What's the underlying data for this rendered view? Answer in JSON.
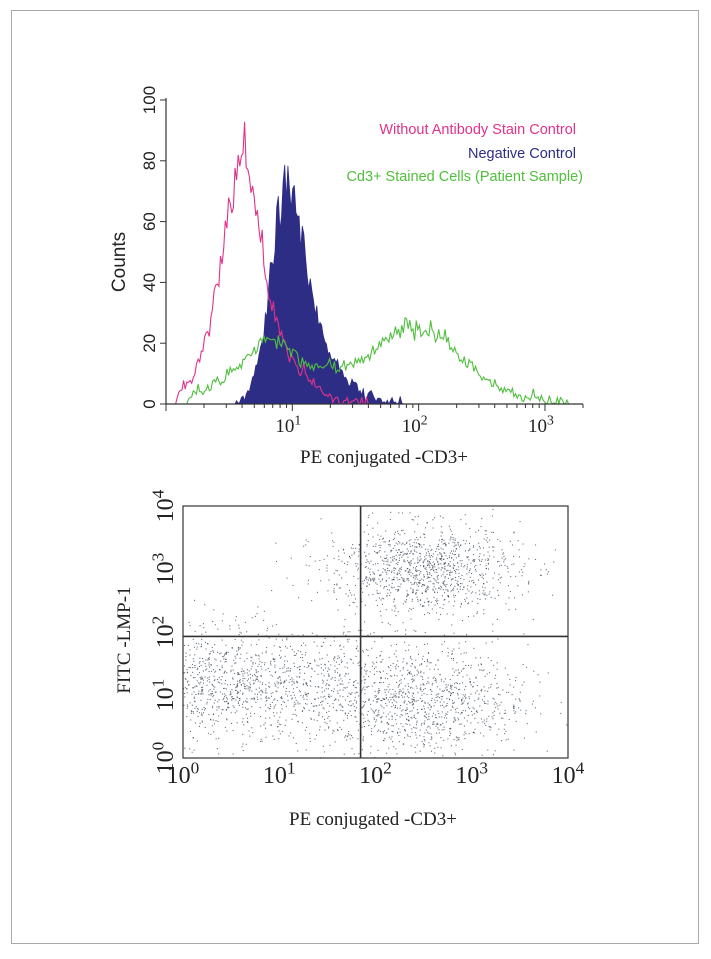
{
  "chart_data": [
    {
      "type": "area",
      "title": "",
      "xlabel": "PE conjugated -CD3+",
      "ylabel": "Counts",
      "x_scale": "log",
      "xlim": [
        1,
        2000
      ],
      "ylim": [
        0,
        100
      ],
      "x_ticks": [
        {
          "value": 10,
          "base": "10",
          "exp": "1"
        },
        {
          "value": 100,
          "base": "10",
          "exp": "2"
        },
        {
          "value": 1000,
          "base": "10",
          "exp": "3"
        }
      ],
      "y_ticks": [
        "0",
        "20",
        "40",
        "60",
        "80",
        "100"
      ],
      "y_tick_values": [
        0,
        20,
        40,
        60,
        80,
        100
      ],
      "legend_position": "top-right",
      "series": [
        {
          "name": "Without Antibody Stain  Control",
          "color": "#e0338a",
          "style": "outline",
          "points": [
            [
              1.2,
              2
            ],
            [
              1.6,
              8
            ],
            [
              2.2,
              25
            ],
            [
              2.8,
              50
            ],
            [
              3.4,
              72
            ],
            [
              3.9,
              88
            ],
            [
              4.3,
              84
            ],
            [
              5.0,
              66
            ],
            [
              6.2,
              42
            ],
            [
              8,
              24
            ],
            [
              11,
              12
            ],
            [
              16,
              5
            ],
            [
              25,
              1
            ],
            [
              40,
              0
            ]
          ]
        },
        {
          "name": "Negative Control",
          "color": "#2e2d86",
          "style": "filled",
          "points": [
            [
              3.5,
              0
            ],
            [
              4.5,
              4
            ],
            [
              5.5,
              15
            ],
            [
              6.5,
              35
            ],
            [
              7.5,
              60
            ],
            [
              8.5,
              73
            ],
            [
              9.5,
              75
            ],
            [
              11,
              64
            ],
            [
              13,
              46
            ],
            [
              16,
              28
            ],
            [
              20,
              16
            ],
            [
              27,
              8
            ],
            [
              38,
              3
            ],
            [
              55,
              1
            ],
            [
              80,
              0
            ]
          ]
        },
        {
          "name": "Cd3+ Stained Cells (Patient Sample)",
          "color": "#4fbf3c",
          "style": "outline",
          "points": [
            [
              1.5,
              2
            ],
            [
              2.5,
              7
            ],
            [
              4,
              13
            ],
            [
              5.5,
              20
            ],
            [
              7,
              22
            ],
            [
              9.5,
              18
            ],
            [
              13,
              13
            ],
            [
              20,
              12
            ],
            [
              35,
              14
            ],
            [
              50,
              20
            ],
            [
              70,
              25
            ],
            [
              100,
              26
            ],
            [
              140,
              24
            ],
            [
              200,
              17
            ],
            [
              300,
              10
            ],
            [
              500,
              4
            ],
            [
              800,
              1.5
            ],
            [
              1500,
              0
            ]
          ]
        }
      ]
    },
    {
      "type": "scatter",
      "title": "",
      "xlabel": "PE conjugated -CD3+",
      "ylabel": "FITC -LMP-1",
      "x_scale": "log",
      "y_scale": "log",
      "xlim": [
        1,
        10000
      ],
      "ylim": [
        1,
        10000
      ],
      "x_ticks": [
        {
          "value": 1,
          "base": "10",
          "exp": "0"
        },
        {
          "value": 10,
          "base": "10",
          "exp": "1"
        },
        {
          "value": 100,
          "base": "10",
          "exp": "2"
        },
        {
          "value": 1000,
          "base": "10",
          "exp": "3"
        },
        {
          "value": 10000,
          "base": "10",
          "exp": "4"
        }
      ],
      "y_ticks": [
        {
          "value": 1,
          "base": "10",
          "exp": "0"
        },
        {
          "value": 10,
          "base": "10",
          "exp": "1"
        },
        {
          "value": 100,
          "base": "10",
          "exp": "2"
        },
        {
          "value": 1000,
          "base": "10",
          "exp": "3"
        },
        {
          "value": 10000,
          "base": "10",
          "exp": "4"
        }
      ],
      "quadrant_gate": {
        "x": 70,
        "y": 85
      },
      "point_color": "#1c2a3a",
      "populations": [
        {
          "center": [
            3,
            15
          ],
          "spread_decades": [
            0.9,
            0.45
          ],
          "approx_count": 1600
        },
        {
          "center": [
            300,
            1000
          ],
          "spread_decades": [
            0.5,
            0.35
          ],
          "approx_count": 1100
        },
        {
          "center": [
            300,
            8
          ],
          "spread_decades": [
            0.55,
            0.45
          ],
          "approx_count": 1000
        }
      ]
    }
  ]
}
